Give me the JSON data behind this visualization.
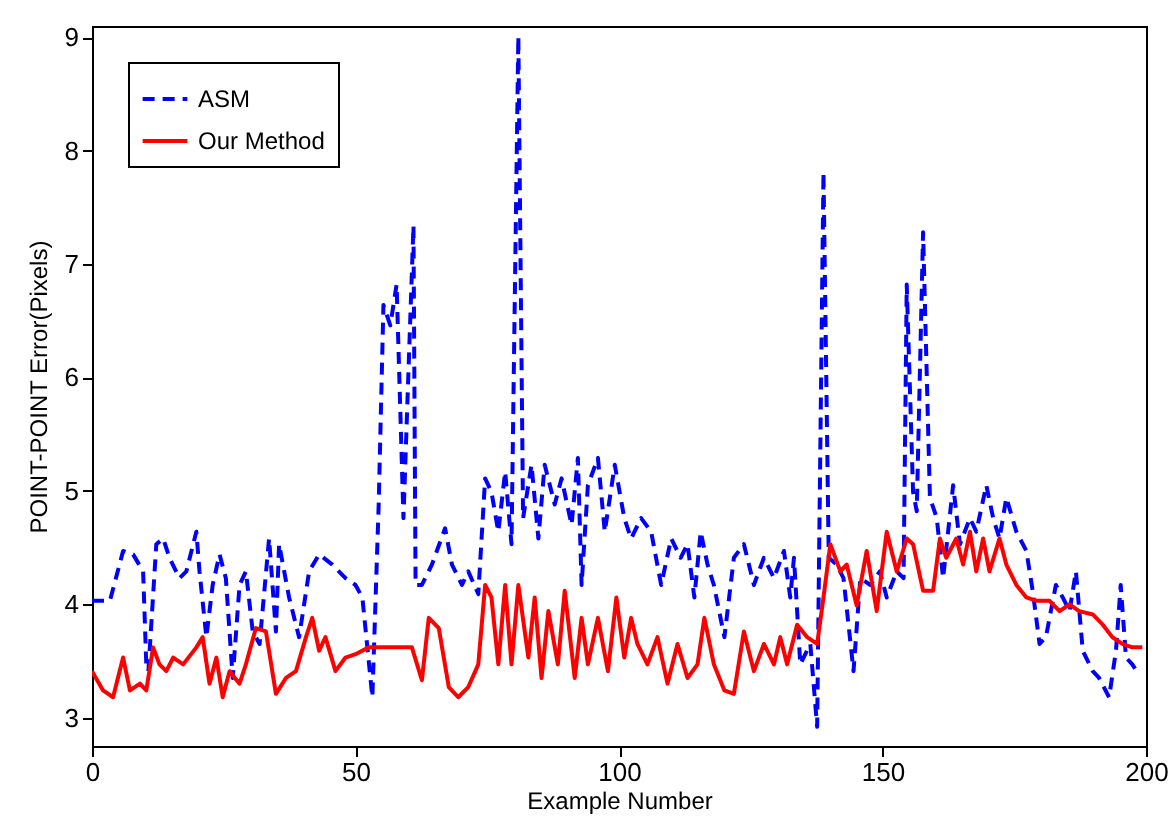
{
  "chart_data": {
    "type": "line",
    "xlabel": "Example Number",
    "ylabel": "POINT-POINT Error(Pixels)",
    "xlim": [
      0,
      200
    ],
    "ylim": [
      2.75,
      9.1
    ],
    "xticks": [
      0,
      50,
      100,
      150,
      200
    ],
    "yticks": [
      3,
      4,
      5,
      6,
      7,
      8,
      9
    ],
    "grid": false,
    "legend": "top left",
    "series": [
      {
        "name": "ASM",
        "color": "#0000ff",
        "line_style": "dashed",
        "x": [
          0,
          3.4,
          5.9,
          7.8,
          9.7,
          10.3,
          10.7,
          12.2,
          13.5,
          14.7,
          16.6,
          17.9,
          19.8,
          20.4,
          21.7,
          22.9,
          24.2,
          25.4,
          26.7,
          28,
          29.2,
          30.5,
          31.8,
          33.6,
          34.9,
          35.5,
          37.4,
          39.3,
          41.2,
          43.1,
          45.6,
          48.1,
          50,
          51.3,
          53.2,
          54.4,
          55.3,
          56.6,
          57.8,
          59.1,
          61,
          61.4,
          62.6,
          64.5,
          67,
          68.3,
          70.2,
          71.4,
          73.3,
          74.6,
          75.8,
          77.1,
          78.4,
          79.6,
          80.9,
          81.8,
          83.4,
          84.7,
          85.9,
          87.8,
          89.1,
          91,
          92.2,
          92.9,
          94.1,
          96,
          97.3,
          99.2,
          101,
          102.3,
          104.2,
          106.1,
          108,
          109.9,
          111.7,
          113,
          114.3,
          115.5,
          116.8,
          118,
          120,
          121.8,
          123.7,
          125.6,
          127.5,
          129.4,
          131.3,
          132.5,
          133.2,
          134.4,
          136.3,
          137.6,
          138.8,
          139.8,
          141.3,
          142.6,
          144.5,
          145.8,
          147.7,
          149.5,
          150.8,
          152.7,
          154,
          154.6,
          155.8,
          156.5,
          157.7,
          159,
          160.3,
          161.5,
          163.4,
          164.7,
          166.6,
          167.8,
          169.7,
          171,
          172.2,
          173.5,
          175.4,
          177.3,
          178.5,
          179.8,
          181,
          182.9,
          184.2,
          185.5,
          186.7,
          188,
          189.9,
          191.1,
          193,
          194.3,
          195.2,
          196.2,
          197.4,
          198.7
        ],
        "values": [
          4.03,
          4.03,
          4.47,
          4.44,
          4.29,
          3.47,
          3.41,
          4.53,
          4.58,
          4.41,
          4.23,
          4.29,
          4.64,
          4.29,
          3.71,
          4.17,
          4.44,
          4.23,
          3.35,
          4.17,
          4.29,
          3.76,
          3.65,
          4.58,
          3.76,
          4.53,
          4.06,
          3.71,
          4.29,
          4.44,
          4.35,
          4.23,
          4.17,
          4.06,
          3.18,
          4.88,
          6.64,
          6.46,
          6.82,
          4.76,
          7.34,
          4.17,
          4.17,
          4.35,
          4.67,
          4.35,
          4.17,
          4.29,
          4.09,
          5.11,
          4.99,
          4.64,
          5.17,
          4.53,
          9.01,
          4.76,
          5.23,
          4.58,
          5.23,
          4.88,
          5.11,
          4.7,
          5.29,
          4.17,
          5.05,
          5.29,
          4.64,
          5.23,
          4.76,
          4.58,
          4.76,
          4.64,
          4.17,
          4.58,
          4.41,
          4.53,
          4.06,
          4.64,
          4.35,
          4.17,
          3.71,
          4.41,
          4.53,
          4.17,
          4.41,
          4.23,
          4.47,
          4.06,
          4.41,
          3.47,
          3.65,
          2.92,
          7.81,
          4.41,
          4.35,
          4.23,
          3.41,
          4.23,
          4.17,
          4.29,
          4.06,
          4.29,
          4.23,
          6.82,
          4.99,
          4.82,
          7.28,
          4.94,
          4.76,
          4.23,
          5.05,
          4.53,
          4.76,
          4.64,
          5.05,
          4.76,
          4.58,
          4.94,
          4.64,
          4.47,
          4.12,
          3.65,
          3.71,
          4.17,
          4.06,
          3.94,
          4.29,
          3.59,
          3.41,
          3.35,
          3.18,
          3.59,
          4.17,
          3.53,
          3.47,
          3.38
        ]
      },
      {
        "name": "Our Method",
        "color": "#ff0000",
        "line_style": "solid",
        "x": [
          0,
          2.1,
          4,
          5.9,
          7.2,
          9.1,
          10.3,
          11.6,
          12.8,
          14.1,
          15.4,
          17.3,
          19.8,
          21,
          22.3,
          23.6,
          24.8,
          26.1,
          28,
          29.2,
          31.1,
          33,
          34.9,
          36.8,
          38.7,
          40.6,
          41.8,
          43.1,
          44.3,
          46.2,
          48.1,
          50,
          52.5,
          60.7,
          62.6,
          63.9,
          65.8,
          67.7,
          69.5,
          71.4,
          73.3,
          74.6,
          75.8,
          77.1,
          78.4,
          79.6,
          80.9,
          82.8,
          84,
          85.3,
          86.6,
          88.4,
          89.7,
          91.6,
          92.9,
          94.1,
          96,
          97.9,
          99.5,
          101,
          102.3,
          103.5,
          105.4,
          107.3,
          109.2,
          111.1,
          113,
          114.9,
          116.2,
          118,
          120,
          121.8,
          123.7,
          125.6,
          127.5,
          129.4,
          130.6,
          131.9,
          133.8,
          135.7,
          137.6,
          138.8,
          140.1,
          142,
          143.2,
          145.1,
          147,
          148.9,
          150.8,
          152.7,
          154.6,
          155.8,
          157.7,
          159.6,
          160.9,
          162.1,
          164,
          165.3,
          166.6,
          167.8,
          169.1,
          170.3,
          172.2,
          173.5,
          175.4,
          177.3,
          179.2,
          181.7,
          183.6,
          185.5,
          187.3,
          189.9,
          191.8,
          193.6,
          195.5,
          197.4,
          199.3
        ],
        "values": [
          3.41,
          3.24,
          3.18,
          3.53,
          3.24,
          3.3,
          3.24,
          3.62,
          3.47,
          3.41,
          3.53,
          3.47,
          3.62,
          3.71,
          3.3,
          3.53,
          3.18,
          3.41,
          3.3,
          3.47,
          3.79,
          3.76,
          3.21,
          3.35,
          3.41,
          3.71,
          3.88,
          3.59,
          3.71,
          3.41,
          3.53,
          3.56,
          3.62,
          3.62,
          3.33,
          3.88,
          3.79,
          3.27,
          3.18,
          3.27,
          3.47,
          4.17,
          4.06,
          3.47,
          4.17,
          3.47,
          4.17,
          3.53,
          4.06,
          3.35,
          3.94,
          3.47,
          4.12,
          3.35,
          3.88,
          3.47,
          3.88,
          3.41,
          4.06,
          3.53,
          3.88,
          3.65,
          3.47,
          3.71,
          3.3,
          3.65,
          3.35,
          3.47,
          3.88,
          3.47,
          3.24,
          3.21,
          3.76,
          3.41,
          3.65,
          3.47,
          3.71,
          3.47,
          3.82,
          3.71,
          3.65,
          4.06,
          4.53,
          4.29,
          4.35,
          3.99,
          4.47,
          3.94,
          4.64,
          4.29,
          4.58,
          4.53,
          4.12,
          4.12,
          4.58,
          4.41,
          4.58,
          4.35,
          4.64,
          4.29,
          4.58,
          4.29,
          4.58,
          4.35,
          4.17,
          4.06,
          4.03,
          4.03,
          3.94,
          4,
          3.94,
          3.91,
          3.82,
          3.71,
          3.65,
          3.62,
          3.62
        ]
      }
    ]
  }
}
